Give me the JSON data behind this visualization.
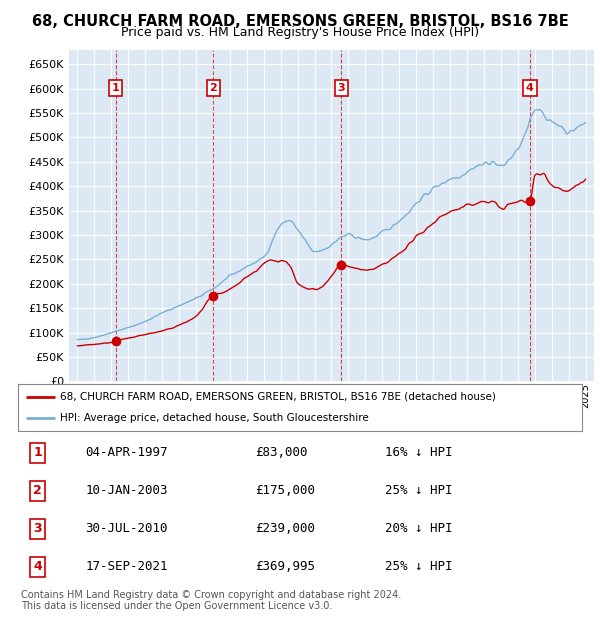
{
  "title_line1": "68, CHURCH FARM ROAD, EMERSONS GREEN, BRISTOL, BS16 7BE",
  "title_line2": "Price paid vs. HM Land Registry's House Price Index (HPI)",
  "background_color": "#dce9f5",
  "grid_color": "#ffffff",
  "sale_dates": [
    1997.26,
    2003.03,
    2010.58,
    2021.71
  ],
  "sale_prices": [
    83000,
    175000,
    239000,
    369995
  ],
  "sale_labels": [
    "1",
    "2",
    "3",
    "4"
  ],
  "legend_red_label": "68, CHURCH FARM ROAD, EMERSONS GREEN, BRISTOL, BS16 7BE (detached house)",
  "legend_blue_label": "HPI: Average price, detached house, South Gloucestershire",
  "table_rows": [
    [
      "1",
      "04-APR-1997",
      "£83,000",
      "16% ↓ HPI"
    ],
    [
      "2",
      "10-JAN-2003",
      "£175,000",
      "25% ↓ HPI"
    ],
    [
      "3",
      "30-JUL-2010",
      "£239,000",
      "20% ↓ HPI"
    ],
    [
      "4",
      "17-SEP-2021",
      "£369,995",
      "25% ↓ HPI"
    ]
  ],
  "footer_line1": "Contains HM Land Registry data © Crown copyright and database right 2024.",
  "footer_line2": "This data is licensed under the Open Government Licence v3.0.",
  "red_color": "#cc0000",
  "blue_color": "#7aafd4",
  "ylim_min": 0,
  "ylim_max": 680000,
  "xlim_min": 1994.5,
  "xlim_max": 2025.5,
  "hpi_knots_x": [
    1995,
    1996,
    1997,
    1998,
    1999,
    2000,
    2001,
    2002,
    2003,
    2004,
    2005,
    2006,
    2007,
    2007.5,
    2008,
    2008.5,
    2009,
    2009.5,
    2010,
    2010.5,
    2011,
    2011.5,
    2012,
    2012.5,
    2013,
    2013.5,
    2014,
    2014.5,
    2015,
    2015.5,
    2016,
    2016.5,
    2017,
    2017.5,
    2018,
    2018.5,
    2019,
    2019.5,
    2020,
    2020.5,
    2021,
    2021.5,
    2022,
    2022.3,
    2022.6,
    2023,
    2023.5,
    2024,
    2024.5,
    2025
  ],
  "hpi_knots_y": [
    85000,
    90000,
    100000,
    110000,
    123000,
    140000,
    155000,
    170000,
    190000,
    215000,
    235000,
    255000,
    320000,
    330000,
    310000,
    285000,
    265000,
    270000,
    280000,
    293000,
    300000,
    295000,
    290000,
    295000,
    305000,
    315000,
    330000,
    345000,
    365000,
    380000,
    395000,
    405000,
    415000,
    420000,
    430000,
    440000,
    445000,
    450000,
    440000,
    455000,
    475000,
    510000,
    555000,
    560000,
    545000,
    530000,
    525000,
    510000,
    520000,
    530000
  ],
  "red_knots_x": [
    1995,
    1996,
    1997,
    1997.26,
    1998,
    1999,
    2000,
    2001,
    2002,
    2003.03,
    2003.5,
    2004,
    2004.5,
    2005,
    2005.5,
    2006,
    2006.5,
    2007,
    2007.5,
    2008,
    2008.5,
    2009,
    2009.5,
    2010,
    2010.58,
    2011,
    2011.5,
    2012,
    2012.5,
    2013,
    2013.5,
    2014,
    2014.5,
    2015,
    2015.5,
    2016,
    2016.5,
    2017,
    2017.5,
    2018,
    2018.5,
    2019,
    2019.5,
    2020,
    2020.5,
    2021,
    2021.71,
    2022,
    2022.5,
    2023,
    2023.5,
    2024,
    2024.5,
    2025
  ],
  "red_knots_y": [
    73000,
    76000,
    80000,
    83000,
    88000,
    96000,
    103000,
    115000,
    133000,
    175000,
    180000,
    188000,
    200000,
    215000,
    225000,
    240000,
    248000,
    248000,
    240000,
    200000,
    190000,
    188000,
    195000,
    215000,
    239000,
    236000,
    230000,
    228000,
    230000,
    238000,
    248000,
    262000,
    278000,
    295000,
    310000,
    325000,
    338000,
    348000,
    352000,
    360000,
    365000,
    368000,
    368000,
    355000,
    362000,
    368000,
    369995,
    420000,
    425000,
    405000,
    395000,
    390000,
    400000,
    415000
  ]
}
